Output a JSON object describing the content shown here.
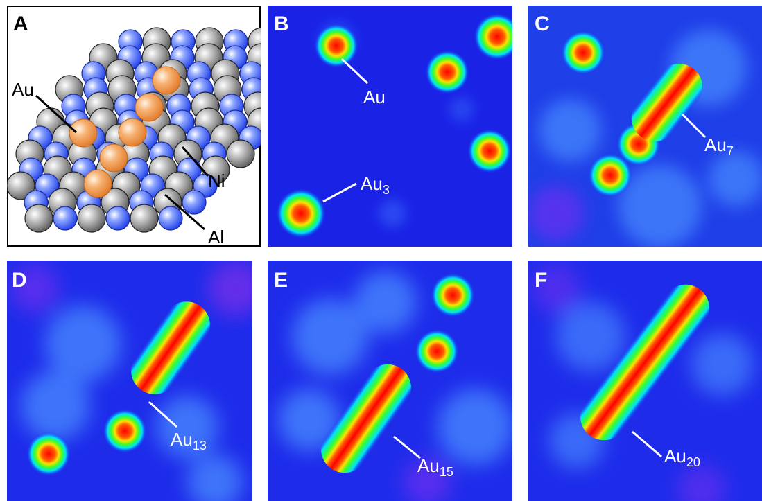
{
  "panels": {
    "a": {
      "label": "A",
      "atoms": {
        "au": "Au",
        "ni": "Ni",
        "al": "Al"
      }
    },
    "b": {
      "label": "B",
      "annotations": [
        {
          "base": "Au",
          "sub": ""
        },
        {
          "base": "Au",
          "sub": "3"
        }
      ]
    },
    "c": {
      "label": "C",
      "annotations": [
        {
          "base": "Au",
          "sub": "7"
        }
      ]
    },
    "d": {
      "label": "D",
      "annotations": [
        {
          "base": "Au",
          "sub": "13"
        }
      ]
    },
    "e": {
      "label": "E",
      "annotations": [
        {
          "base": "Au",
          "sub": "15"
        }
      ]
    },
    "f": {
      "label": "F",
      "annotations": [
        {
          "base": "Au",
          "sub": "20"
        }
      ]
    }
  },
  "colors": {
    "substrate_blue": "#1a22e6",
    "peak_red": "#ff1a00",
    "au_orange": "#f4a860",
    "ni_gray": "#9a9a9a",
    "al_blue": "#3c62ff"
  },
  "colormap": "jet"
}
